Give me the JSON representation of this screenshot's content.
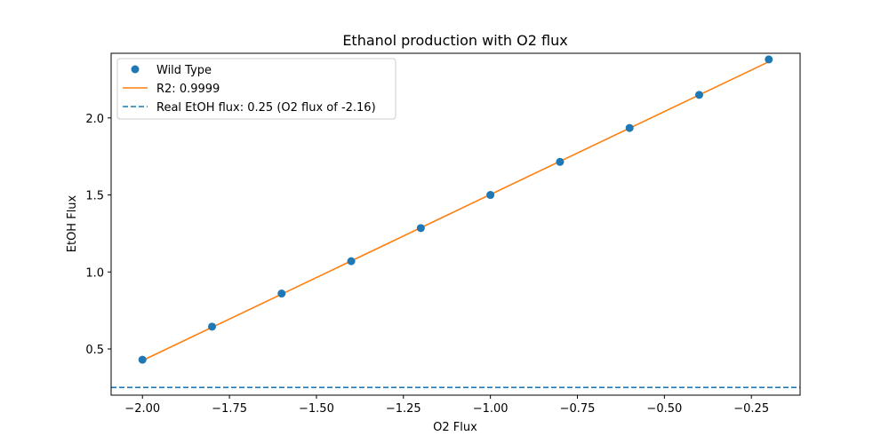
{
  "chart_data": {
    "type": "scatter",
    "title": "Ethanol production with O2 flux",
    "xlabel": "O2 Flux",
    "ylabel": "EtOH Flux",
    "xlim": [
      -2.09,
      -0.11
    ],
    "ylim": [
      0.2,
      2.42
    ],
    "x_ticks": [
      -2.0,
      -1.75,
      -1.5,
      -1.25,
      -1.0,
      -0.75,
      -0.5,
      -0.25
    ],
    "x_tick_labels": [
      "−2.00",
      "−1.75",
      "−1.50",
      "−1.25",
      "−1.00",
      "−0.75",
      "−0.50",
      "−0.25"
    ],
    "y_ticks": [
      0.5,
      1.0,
      1.5,
      2.0
    ],
    "y_tick_labels": [
      "0.5",
      "1.0",
      "1.5",
      "2.0"
    ],
    "grid": false,
    "legend_position": "top-left",
    "series": [
      {
        "name": "Wild Type",
        "kind": "scatter",
        "color": "#1f77b4",
        "x": [
          -2.0,
          -1.8,
          -1.6,
          -1.4,
          -1.2,
          -1.0,
          -0.8,
          -0.6,
          -0.4,
          -0.2
        ],
        "y": [
          0.43,
          0.645,
          0.86,
          1.07,
          1.285,
          1.5,
          1.715,
          1.935,
          2.15,
          2.38
        ]
      },
      {
        "name": "R2: 0.9999",
        "kind": "line",
        "color": "#ff7f0e",
        "x": [
          -2.0,
          -0.2
        ],
        "y": [
          0.425,
          2.365
        ]
      },
      {
        "name": "Real EtOH flux: 0.25 (O2 flux of -2.16)",
        "kind": "hline",
        "color": "#1f77b4",
        "y": 0.25
      }
    ]
  }
}
